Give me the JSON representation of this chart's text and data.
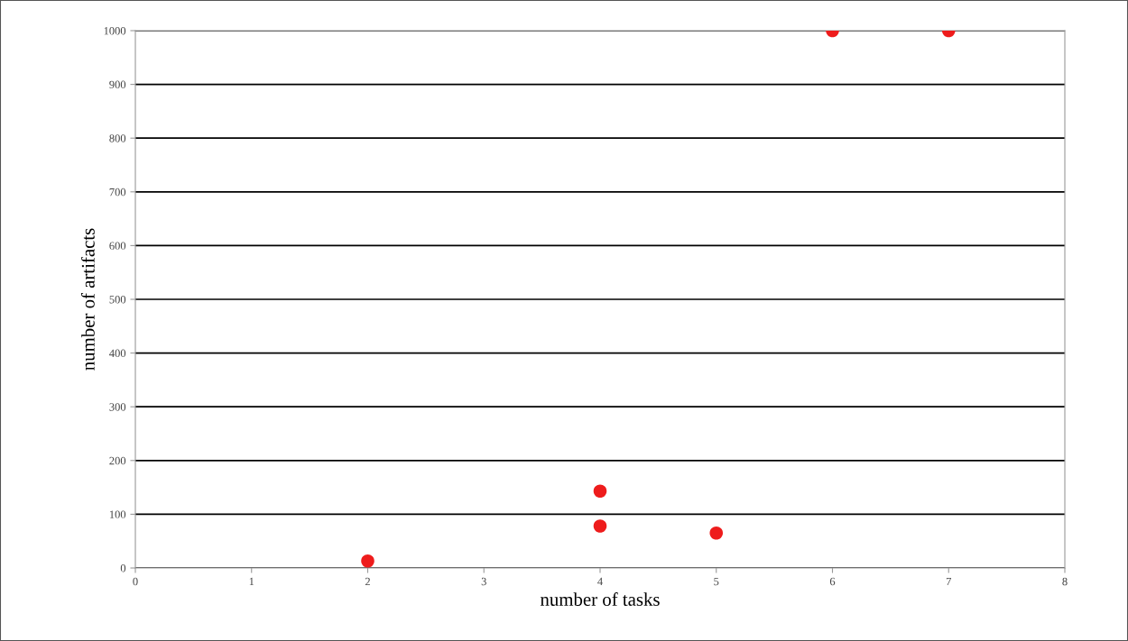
{
  "chart_data": {
    "type": "scatter",
    "xlabel": "number of tasks",
    "ylabel": "number of artifacts",
    "x": [
      2,
      4,
      4,
      5,
      6,
      7
    ],
    "series": [
      {
        "color": "#ee1c1c",
        "values": [
          13,
          143,
          78,
          65,
          1000,
          1000
        ]
      }
    ],
    "xlim": [
      0,
      8
    ],
    "xticks": [
      0,
      1,
      2,
      3,
      4,
      5,
      6,
      7,
      8
    ],
    "ylim": [
      0,
      1000
    ],
    "yticks": [
      0,
      100,
      200,
      300,
      400,
      500,
      600,
      700,
      800,
      900,
      1000
    ],
    "grid": "y",
    "marker": "circle"
  }
}
